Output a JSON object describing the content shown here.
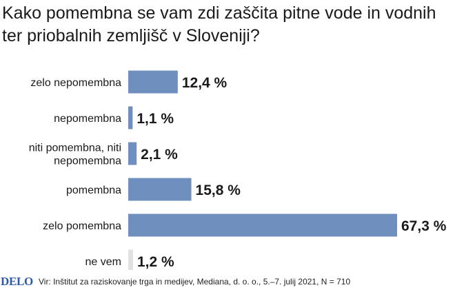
{
  "title": "Kako pomembna se vam zdi zaščita pitne vode in vodnih ter priobalnih zemljišč v Sloveniji?",
  "footer": {
    "logo": "DELO",
    "source": "Vir: Inštitut za raziskovanje trga in medijev, Mediana, d. o. o., 5.–7. julij 2021, N = 710"
  },
  "colors": {
    "bar": "#6f8fbe",
    "neutral_bar": "#e1e1e1",
    "text": "#1a1a1a"
  },
  "chart_data": {
    "type": "bar",
    "orientation": "horizontal",
    "categories": [
      [
        "zelo nepomembna"
      ],
      [
        "nepomembna"
      ],
      [
        "niti pomembna, niti",
        "nepomembna"
      ],
      [
        "pomembna"
      ],
      [
        "zelo pomembna"
      ],
      [
        "ne vem"
      ]
    ],
    "values": [
      12.4,
      1.1,
      2.1,
      15.8,
      67.3,
      1.2
    ],
    "value_labels": [
      "12,4 %",
      "1,1 %",
      "2,1 %",
      "15,8 %",
      "67,3 %",
      "1,2 %"
    ],
    "neutral": [
      false,
      false,
      false,
      false,
      false,
      true
    ],
    "unit": "%"
  }
}
